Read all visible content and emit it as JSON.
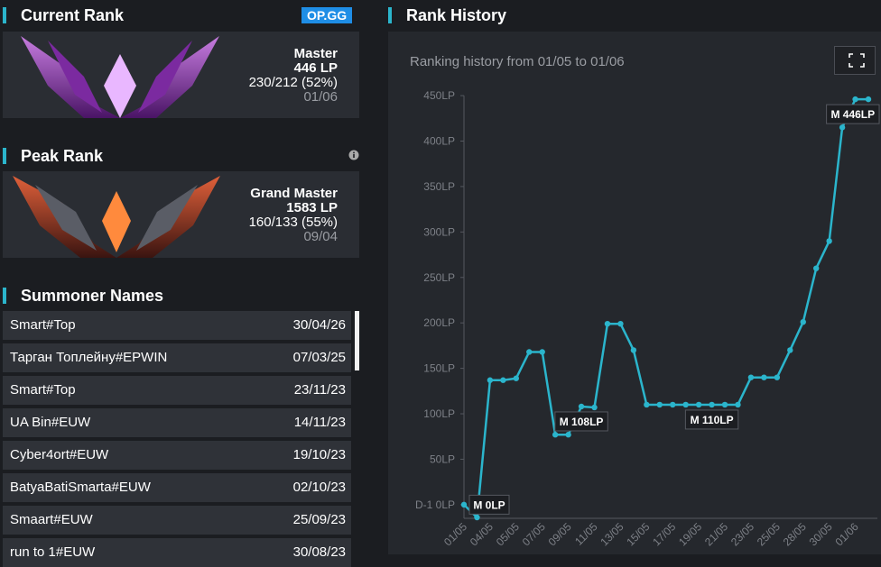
{
  "current_rank": {
    "title": "Current Rank",
    "badge": "OP.GG",
    "tier": "Master",
    "lp": "446 LP",
    "record": "230/212 (52%)",
    "date": "01/06"
  },
  "peak_rank": {
    "title": "Peak Rank",
    "tier": "Grand Master",
    "lp": "1583 LP",
    "record": "160/133 (55%)",
    "date": "09/04"
  },
  "summoner_names": {
    "title": "Summoner Names",
    "rows": [
      [
        "Smart#Top",
        "30/04/26"
      ],
      [
        "Тарган Топлейну#EPWIN",
        "07/03/25"
      ],
      [
        "Smart#Top",
        "23/11/23"
      ],
      [
        "UA Bin#EUW",
        "14/11/23"
      ],
      [
        "Cyber4ort#EUW",
        "19/10/23"
      ],
      [
        "BatyaBatiSmarta#EUW",
        "02/10/23"
      ],
      [
        "Smaart#EUW",
        "25/09/23"
      ],
      [
        "run to 1#EUW",
        "30/08/23"
      ]
    ]
  },
  "chart_data": {
    "type": "line",
    "title": "Rank History",
    "subtitle": "Ranking history from 01/05 to 01/06",
    "categories": [
      "01/05",
      null,
      "04/05",
      null,
      "05/05",
      null,
      "07/05",
      null,
      "09/05",
      null,
      "11/05",
      null,
      "13/05",
      null,
      "15/05",
      null,
      "17/05",
      null,
      "19/05",
      null,
      "21/05",
      null,
      "23/05",
      null,
      "25/05",
      null,
      "28/05",
      null,
      "30/05",
      null,
      "01/06",
      null
    ],
    "values": [
      0,
      -14,
      137,
      137,
      139,
      168,
      168,
      77,
      77,
      108,
      107,
      199,
      199,
      170,
      110,
      110,
      110,
      110,
      110,
      110,
      110,
      110,
      140,
      140,
      140,
      170,
      201,
      260,
      290,
      415,
      446,
      446
    ],
    "value_labels": [
      "M 0LP",
      null,
      null,
      null,
      null,
      null,
      null,
      null,
      null,
      "M 108LP",
      null,
      null,
      null,
      null,
      null,
      null,
      null,
      null,
      null,
      "M 110LP",
      null,
      null,
      null,
      null,
      null,
      null,
      null,
      null,
      null,
      null,
      null,
      "M 446LP"
    ],
    "color": "#2bb5cc",
    "ylim": [
      -15,
      460
    ],
    "yticks": [
      {
        "value": 0,
        "label": "D-1 0LP"
      },
      {
        "value": 50,
        "label": "50LP"
      },
      {
        "value": 100,
        "label": "100LP"
      },
      {
        "value": 150,
        "label": "150LP"
      },
      {
        "value": 200,
        "label": "200LP"
      },
      {
        "value": 250,
        "label": "250LP"
      },
      {
        "value": 300,
        "label": "300LP"
      },
      {
        "value": 350,
        "label": "350LP"
      },
      {
        "value": 400,
        "label": "400LP"
      },
      {
        "value": 450,
        "label": "450LP"
      }
    ],
    "grid": false
  }
}
